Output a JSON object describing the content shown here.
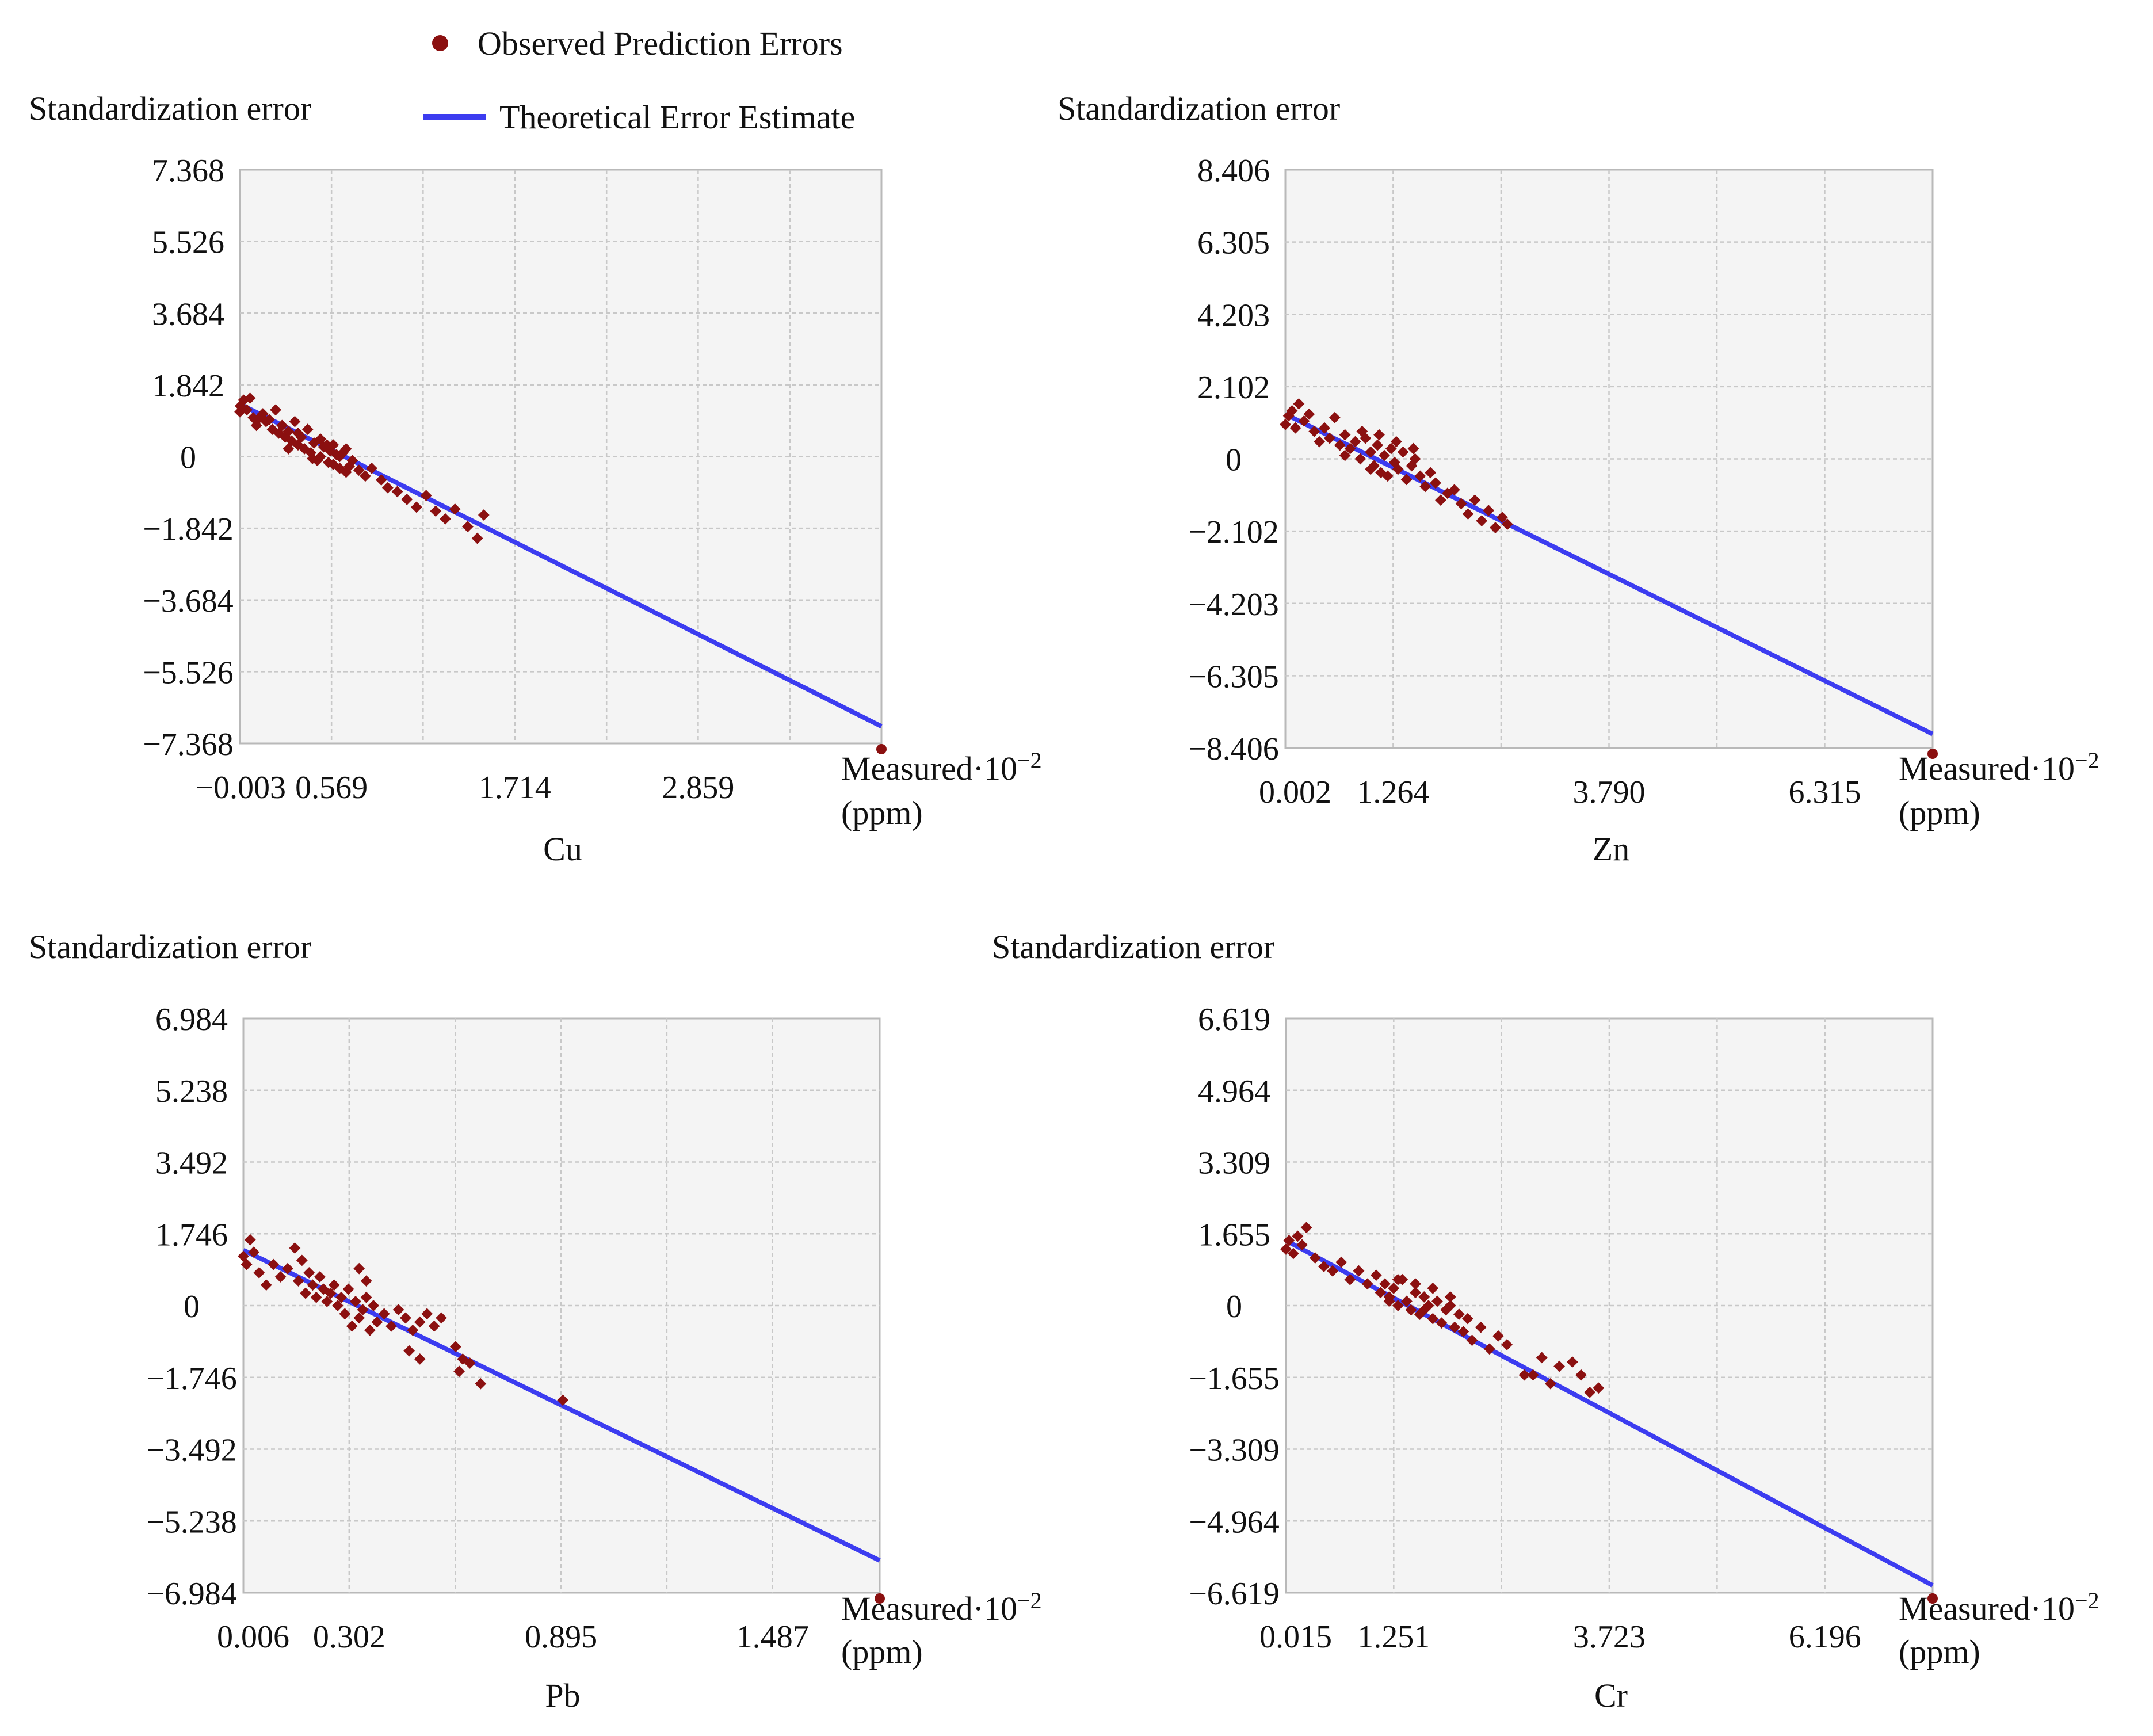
{
  "legend": {
    "points_label": "Observed Prediction Errors",
    "line_label": "Theoretical Error Estimate",
    "points_color": "#8b1010",
    "line_color": "#3c3cf0"
  },
  "chart_data": [
    {
      "type": "scatter",
      "element": "Cu",
      "ylabel": "Standardization error",
      "xlabel_line1": "Measured·10",
      "xlabel_exp": "−2",
      "xlabel_line2": "(ppm)",
      "x_ticks": [
        "−0.003",
        "0.569",
        "1.714",
        "2.859"
      ],
      "y_ticks": [
        "7.368",
        "5.526",
        "3.684",
        "1.842",
        "0",
        "−1.842",
        "−3.684",
        "−5.526",
        "−7.368"
      ],
      "xlim": [
        -0.003,
        4.004
      ],
      "ylim": [
        -7.368,
        7.368
      ],
      "x_gridlines": [
        0.569,
        1.141,
        1.714,
        2.287,
        2.859,
        3.432
      ],
      "line": {
        "x": [
          -0.003,
          4.004
        ],
        "y": [
          1.35,
          -6.93
        ]
      },
      "series": [
        {
          "name": "Observed Prediction Errors",
          "points": [
            [
              -0.003,
              1.15
            ],
            [
              0.0,
              1.3
            ],
            [
              0.02,
              1.45
            ],
            [
              0.04,
              1.2
            ],
            [
              0.06,
              1.5
            ],
            [
              0.08,
              1.0
            ],
            [
              0.1,
              0.8
            ],
            [
              0.12,
              1.0
            ],
            [
              0.14,
              1.1
            ],
            [
              0.16,
              0.9
            ],
            [
              0.18,
              0.95
            ],
            [
              0.2,
              0.7
            ],
            [
              0.22,
              1.2
            ],
            [
              0.24,
              0.6
            ],
            [
              0.26,
              0.8
            ],
            [
              0.28,
              0.5
            ],
            [
              0.3,
              0.65
            ],
            [
              0.32,
              0.4
            ],
            [
              0.34,
              0.9
            ],
            [
              0.36,
              0.3
            ],
            [
              0.38,
              0.5
            ],
            [
              0.4,
              0.2
            ],
            [
              0.42,
              0.7
            ],
            [
              0.44,
              0.1
            ],
            [
              0.46,
              0.35
            ],
            [
              0.48,
              -0.1
            ],
            [
              0.5,
              0.0
            ],
            [
              0.52,
              0.25
            ],
            [
              0.54,
              0.3
            ],
            [
              0.56,
              0.15
            ],
            [
              0.58,
              -0.2
            ],
            [
              0.6,
              0.05
            ],
            [
              0.62,
              -0.3
            ],
            [
              0.64,
              0.1
            ],
            [
              0.66,
              -0.4
            ],
            [
              0.68,
              -0.25
            ],
            [
              0.7,
              -0.1
            ],
            [
              0.74,
              -0.35
            ],
            [
              0.78,
              -0.5
            ],
            [
              0.82,
              -0.3
            ],
            [
              0.88,
              -0.6
            ],
            [
              0.92,
              -0.8
            ],
            [
              0.98,
              -0.9
            ],
            [
              1.04,
              -1.1
            ],
            [
              1.1,
              -1.3
            ],
            [
              1.16,
              -1.0
            ],
            [
              1.22,
              -1.4
            ],
            [
              1.28,
              -1.6
            ],
            [
              1.34,
              -1.35
            ],
            [
              1.42,
              -1.8
            ],
            [
              1.48,
              -2.1
            ],
            [
              1.52,
              -1.5
            ],
            [
              0.3,
              0.2
            ],
            [
              0.45,
              -0.05
            ],
            [
              0.55,
              -0.15
            ],
            [
              0.62,
              0.0
            ],
            [
              0.36,
              0.6
            ],
            [
              0.5,
              0.45
            ],
            [
              0.58,
              0.3
            ],
            [
              0.66,
              0.2
            ]
          ]
        }
      ]
    },
    {
      "type": "scatter",
      "element": "Zn",
      "ylabel": "Standardization error",
      "xlabel_line1": "Measured·10",
      "xlabel_exp": "−2",
      "xlabel_line2": "(ppm)",
      "x_ticks": [
        "0.002",
        "1.264",
        "3.790",
        "6.315"
      ],
      "y_ticks": [
        "8.406",
        "6.305",
        "4.203",
        "2.102",
        "0",
        "−2.102",
        "−4.203",
        "−6.305",
        "−8.406"
      ],
      "xlim": [
        0.002,
        7.578
      ],
      "ylim": [
        -8.406,
        8.406
      ],
      "x_gridlines": [
        1.264,
        2.527,
        3.79,
        5.053,
        6.315
      ],
      "line": {
        "x": [
          0.002,
          7.578
        ],
        "y": [
          1.3,
          -8.0
        ]
      },
      "series": [
        {
          "name": "Observed Prediction Errors",
          "points": [
            [
              0.002,
              1.0
            ],
            [
              0.04,
              1.25
            ],
            [
              0.08,
              1.4
            ],
            [
              0.12,
              0.9
            ],
            [
              0.16,
              1.6
            ],
            [
              0.22,
              1.1
            ],
            [
              0.28,
              1.3
            ],
            [
              0.34,
              0.8
            ],
            [
              0.4,
              0.5
            ],
            [
              0.46,
              0.9
            ],
            [
              0.52,
              0.6
            ],
            [
              0.58,
              1.2
            ],
            [
              0.64,
              0.4
            ],
            [
              0.7,
              0.7
            ],
            [
              0.76,
              0.3
            ],
            [
              0.82,
              0.5
            ],
            [
              0.88,
              0.0
            ],
            [
              0.94,
              0.6
            ],
            [
              1.0,
              0.2
            ],
            [
              1.04,
              -0.2
            ],
            [
              1.08,
              0.4
            ],
            [
              1.12,
              -0.4
            ],
            [
              1.16,
              0.1
            ],
            [
              1.2,
              -0.5
            ],
            [
              1.24,
              0.3
            ],
            [
              1.28,
              -0.1
            ],
            [
              1.32,
              -0.3
            ],
            [
              1.38,
              0.2
            ],
            [
              1.42,
              -0.6
            ],
            [
              1.48,
              -0.2
            ],
            [
              1.52,
              0.0
            ],
            [
              1.58,
              -0.5
            ],
            [
              1.64,
              -0.8
            ],
            [
              1.7,
              -0.4
            ],
            [
              1.76,
              -0.7
            ],
            [
              1.82,
              -1.2
            ],
            [
              1.9,
              -1.0
            ],
            [
              1.98,
              -0.9
            ],
            [
              2.06,
              -1.3
            ],
            [
              2.14,
              -1.6
            ],
            [
              2.22,
              -1.2
            ],
            [
              2.3,
              -1.8
            ],
            [
              2.38,
              -1.5
            ],
            [
              2.46,
              -2.0
            ],
            [
              2.54,
              -1.7
            ],
            [
              2.6,
              -1.9
            ],
            [
              0.9,
              0.8
            ],
            [
              1.1,
              0.7
            ],
            [
              1.3,
              0.5
            ],
            [
              1.5,
              0.3
            ],
            [
              0.7,
              0.1
            ],
            [
              1.0,
              -0.3
            ]
          ]
        }
      ]
    },
    {
      "type": "scatter",
      "element": "Pb",
      "ylabel": "Standardization error",
      "xlabel_line1": "Measured·10",
      "xlabel_exp": "−2",
      "xlabel_line2": "(ppm)",
      "x_ticks": [
        "0.006",
        "0.302",
        "0.895",
        "1.487"
      ],
      "y_ticks": [
        "6.984",
        "5.238",
        "3.492",
        "1.746",
        "0",
        "−1.746",
        "−3.492",
        "−5.238",
        "−6.984"
      ],
      "xlim": [
        0.006,
        1.787
      ],
      "ylim": [
        -6.984,
        6.984
      ],
      "x_gridlines": [
        0.302,
        0.599,
        0.895,
        1.191,
        1.487
      ],
      "line": {
        "x": [
          0.006,
          1.787
        ],
        "y": [
          1.35,
          -6.2
        ]
      },
      "series": [
        {
          "name": "Observed Prediction Errors",
          "points": [
            [
              0.006,
              1.2
            ],
            [
              0.015,
              1.0
            ],
            [
              0.025,
              1.6
            ],
            [
              0.035,
              1.3
            ],
            [
              0.05,
              0.8
            ],
            [
              0.07,
              0.5
            ],
            [
              0.09,
              1.0
            ],
            [
              0.11,
              0.7
            ],
            [
              0.13,
              0.9
            ],
            [
              0.15,
              1.4
            ],
            [
              0.16,
              0.6
            ],
            [
              0.17,
              1.1
            ],
            [
              0.18,
              0.3
            ],
            [
              0.19,
              0.8
            ],
            [
              0.2,
              0.5
            ],
            [
              0.21,
              0.2
            ],
            [
              0.22,
              0.7
            ],
            [
              0.23,
              0.4
            ],
            [
              0.24,
              0.1
            ],
            [
              0.25,
              0.3
            ],
            [
              0.26,
              0.5
            ],
            [
              0.27,
              0.0
            ],
            [
              0.28,
              0.2
            ],
            [
              0.29,
              -0.2
            ],
            [
              0.3,
              0.4
            ],
            [
              0.31,
              -0.5
            ],
            [
              0.32,
              0.1
            ],
            [
              0.33,
              -0.3
            ],
            [
              0.34,
              -0.1
            ],
            [
              0.35,
              0.2
            ],
            [
              0.36,
              -0.6
            ],
            [
              0.37,
              0.0
            ],
            [
              0.38,
              -0.4
            ],
            [
              0.4,
              -0.2
            ],
            [
              0.42,
              -0.5
            ],
            [
              0.44,
              -0.1
            ],
            [
              0.46,
              -0.3
            ],
            [
              0.48,
              -0.6
            ],
            [
              0.5,
              -0.4
            ],
            [
              0.52,
              -0.2
            ],
            [
              0.54,
              -0.5
            ],
            [
              0.56,
              -0.3
            ],
            [
              0.47,
              -1.1
            ],
            [
              0.5,
              -1.3
            ],
            [
              0.6,
              -1.0
            ],
            [
              0.61,
              -1.6
            ],
            [
              0.62,
              -1.3
            ],
            [
              0.64,
              -1.4
            ],
            [
              0.67,
              -1.9
            ],
            [
              0.9,
              -2.3
            ],
            [
              0.33,
              0.9
            ],
            [
              0.35,
              0.6
            ]
          ]
        }
      ]
    },
    {
      "type": "scatter",
      "element": "Cr",
      "ylabel": "Standardization error",
      "xlabel_line1": "Measured·10",
      "xlabel_exp": "−2",
      "xlabel_line2": "(ppm)",
      "x_ticks": [
        "0.015",
        "1.251",
        "3.723",
        "6.196"
      ],
      "y_ticks": [
        "6.619",
        "4.964",
        "3.309",
        "1.655",
        "0",
        "−1.655",
        "−3.309",
        "−4.964",
        "−6.619"
      ],
      "xlim": [
        0.015,
        7.432
      ],
      "ylim": [
        -6.619,
        6.619
      ],
      "x_gridlines": [
        1.251,
        2.487,
        3.723,
        4.96,
        6.196
      ],
      "line": {
        "x": [
          0.015,
          7.432
        ],
        "y": [
          1.5,
          -6.45
        ]
      },
      "series": [
        {
          "name": "Observed Prediction Errors",
          "points": [
            [
              0.015,
              1.3
            ],
            [
              0.05,
              1.5
            ],
            [
              0.1,
              1.2
            ],
            [
              0.15,
              1.6
            ],
            [
              0.2,
              1.4
            ],
            [
              0.25,
              1.8
            ],
            [
              0.35,
              1.1
            ],
            [
              0.45,
              0.9
            ],
            [
              0.55,
              0.8
            ],
            [
              0.65,
              1.0
            ],
            [
              0.75,
              0.6
            ],
            [
              0.85,
              0.8
            ],
            [
              0.95,
              0.5
            ],
            [
              1.05,
              0.7
            ],
            [
              1.1,
              0.3
            ],
            [
              1.15,
              0.5
            ],
            [
              1.2,
              0.2
            ],
            [
              1.25,
              0.4
            ],
            [
              1.3,
              0.0
            ],
            [
              1.35,
              0.6
            ],
            [
              1.4,
              0.1
            ],
            [
              1.45,
              -0.1
            ],
            [
              1.5,
              0.3
            ],
            [
              1.55,
              -0.2
            ],
            [
              1.6,
              0.2
            ],
            [
              1.65,
              0.0
            ],
            [
              1.7,
              -0.3
            ],
            [
              1.75,
              0.1
            ],
            [
              1.8,
              -0.4
            ],
            [
              1.85,
              -0.1
            ],
            [
              1.9,
              0.0
            ],
            [
              1.95,
              -0.5
            ],
            [
              2.0,
              -0.2
            ],
            [
              2.05,
              -0.6
            ],
            [
              2.1,
              -0.3
            ],
            [
              2.15,
              -0.8
            ],
            [
              2.25,
              -0.5
            ],
            [
              2.35,
              -1.0
            ],
            [
              2.45,
              -0.7
            ],
            [
              2.55,
              -0.9
            ],
            [
              2.75,
              -1.6
            ],
            [
              2.85,
              -1.6
            ],
            [
              2.95,
              -1.2
            ],
            [
              3.05,
              -1.8
            ],
            [
              3.15,
              -1.4
            ],
            [
              3.3,
              -1.3
            ],
            [
              3.4,
              -1.6
            ],
            [
              3.5,
              -2.0
            ],
            [
              3.6,
              -1.9
            ],
            [
              1.3,
              0.6
            ],
            [
              1.5,
              0.5
            ],
            [
              1.7,
              0.4
            ],
            [
              1.9,
              0.2
            ],
            [
              1.2,
              0.1
            ],
            [
              1.6,
              -0.1
            ]
          ]
        }
      ]
    }
  ]
}
